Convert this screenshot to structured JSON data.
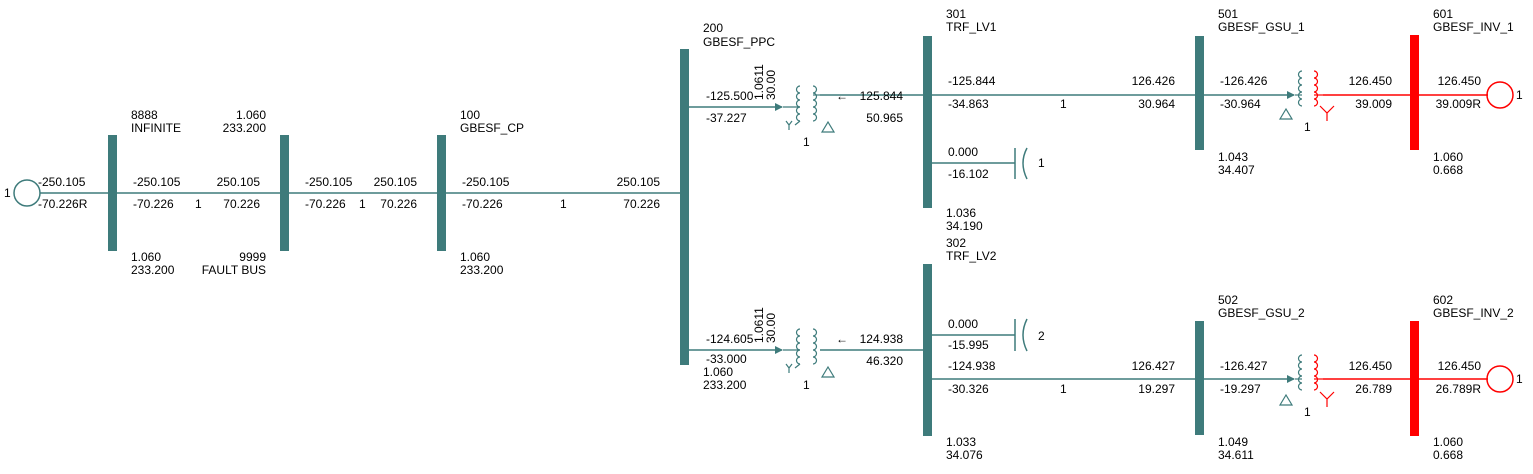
{
  "colors": {
    "network": "#3E7B7B",
    "inverter": "#FF0000",
    "background": "#FFFFFF",
    "text": "#000000"
  },
  "buses": {
    "b8888": {
      "num": "8888",
      "name": "INFINITE",
      "v": "1.060",
      "kv": "233.200"
    },
    "b9999": {
      "v_top": "1.060",
      "kv_top": "233.200",
      "num": "9999",
      "name": "FAULT BUS"
    },
    "b100": {
      "num": "100",
      "name": "GBESF_CP",
      "v": "1.060",
      "kv": "233.200"
    },
    "b200": {
      "num": "200",
      "name": "GBESF_PPC",
      "v": "1.060",
      "kv": "233.200"
    },
    "b301": {
      "num": "301",
      "name": "TRF_LV1",
      "v": "1.036",
      "kv": "34.190"
    },
    "b302": {
      "num": "302",
      "name": "TRF_LV2",
      "v": "1.033",
      "kv": "34.076"
    },
    "b501": {
      "num": "501",
      "name": "GBESF_GSU_1",
      "v": "1.043",
      "kv": "34.407"
    },
    "b502": {
      "num": "502",
      "name": "GBESF_GSU_2",
      "v": "1.049",
      "kv": "34.611"
    },
    "b601": {
      "num": "601",
      "name": "GBESF_INV_1",
      "v": "1.060",
      "kv": "0.668"
    },
    "b602": {
      "num": "602",
      "name": "GBESF_INV_2",
      "v": "1.060",
      "kv": "0.668"
    }
  },
  "flows": {
    "gen_inf": {
      "p": "-250.105",
      "q": "-70.226R",
      "id": "1"
    },
    "br_8888_9999": {
      "p_from": "-250.105",
      "q_from": "-70.226",
      "ckt": "1",
      "p_to": "250.105",
      "q_to": "70.226"
    },
    "br_9999_100": {
      "p_from": "-250.105",
      "q_from": "-70.226",
      "ckt": "1",
      "p_to": "250.105",
      "q_to": "70.226"
    },
    "br_100_200": {
      "p_from": "-250.105",
      "q_from": "-70.226",
      "ckt": "1",
      "p_to": "250.105",
      "q_to": "70.226"
    },
    "tr_200_301": {
      "p_from": "-125.500",
      "q_from": "-37.227",
      "ratio": "1.0611",
      "angle": "30.00",
      "ckt": "1",
      "p_to": "125.844",
      "q_to": "50.965",
      "arrow": "←"
    },
    "tr_200_302": {
      "p_from": "-124.605",
      "q_from": "-33.000",
      "ratio": "1.0611",
      "angle": "30.00",
      "ckt": "1",
      "p_to": "124.938",
      "q_to": "46.320",
      "arrow": "←"
    },
    "br_301_501": {
      "p_from": "-125.844",
      "q_from": "-34.863",
      "ckt": "1",
      "p_to": "126.426",
      "q_to": "30.964"
    },
    "br_302_502": {
      "p_from": "-124.938",
      "q_from": "-30.326",
      "ckt": "1",
      "p_to": "126.427",
      "q_to": "19.297"
    },
    "shunt_301": {
      "p": "0.000",
      "q": "-16.102",
      "id": "1"
    },
    "shunt_302": {
      "p": "0.000",
      "q": "-15.995",
      "id": "2"
    },
    "tr_501_601": {
      "p_from": "-126.426",
      "q_from": "-30.964",
      "ckt": "1",
      "p_to": "126.450",
      "q_to": "39.009"
    },
    "tr_502_602": {
      "p_from": "-126.427",
      "q_from": "-19.297",
      "ckt": "1",
      "p_to": "126.450",
      "q_to": "26.789"
    },
    "gen_inv1": {
      "p": "126.450",
      "q": "39.009R",
      "id": "1"
    },
    "gen_inv2": {
      "p": "126.450",
      "q": "26.789R",
      "id": "1"
    }
  },
  "icons": [
    "generator-icon",
    "transformer-icon",
    "shunt-capacitor-icon",
    "delta-winding-icon",
    "wye-winding-icon"
  ]
}
